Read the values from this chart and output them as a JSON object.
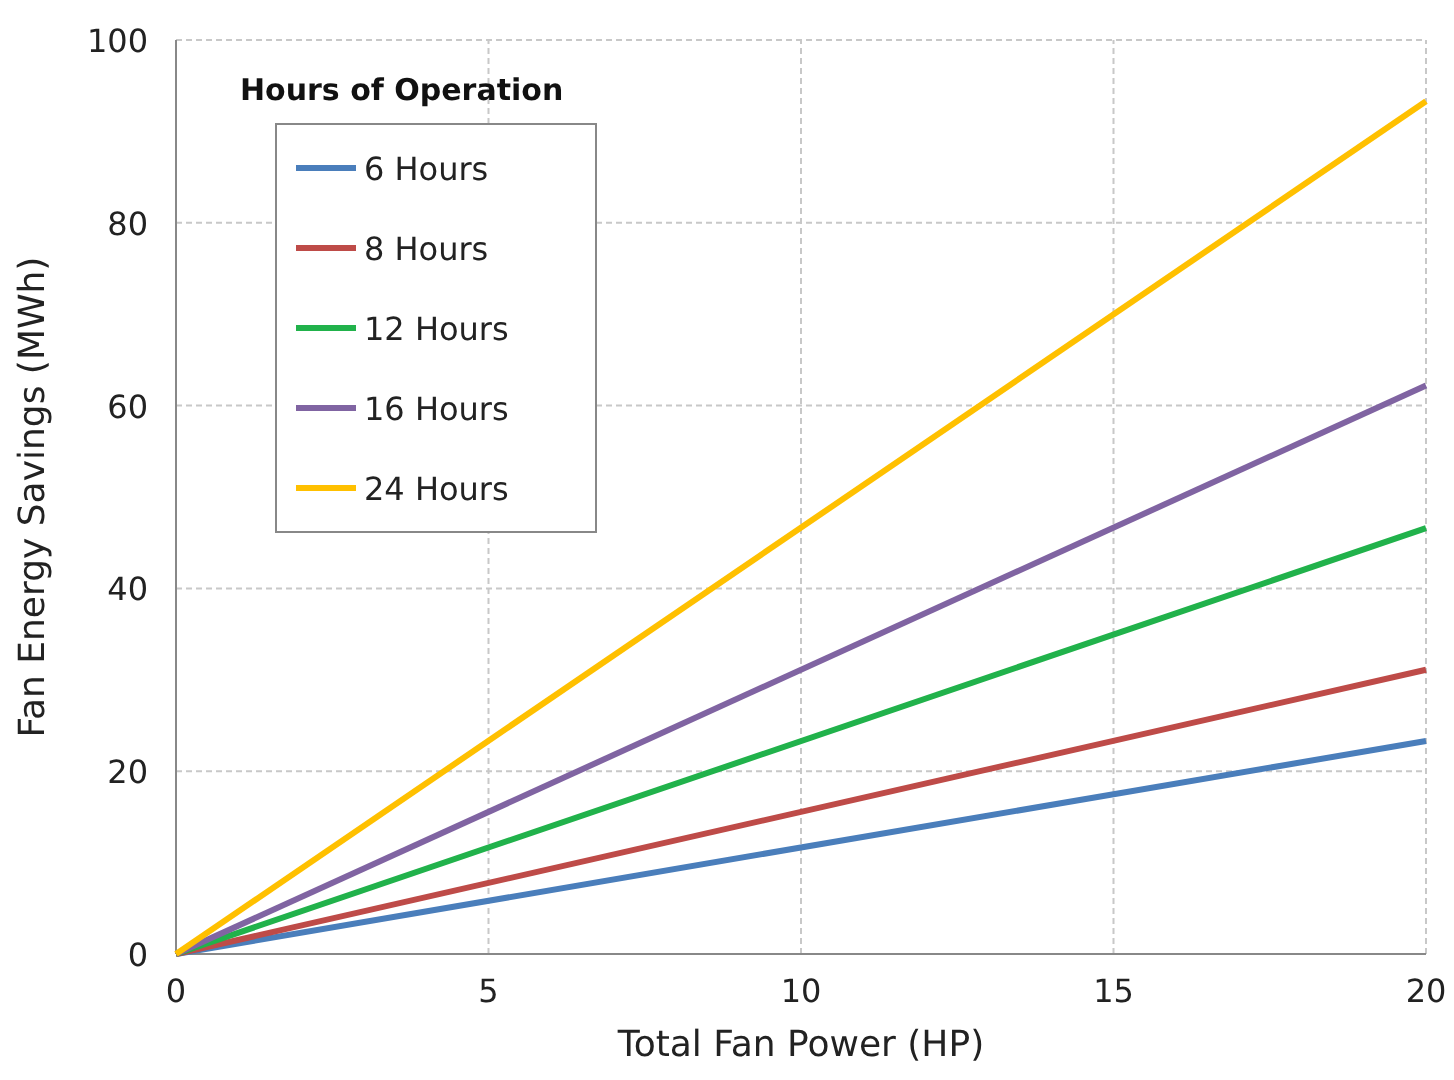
{
  "chart_data": {
    "type": "line",
    "xlabel": "Total Fan Power (HP)",
    "ylabel": "Fan Energy Savings (MWh)",
    "legend_title": "Hours of Operation",
    "x": [
      0,
      20
    ],
    "series": [
      {
        "name": "6 Hours",
        "color": "#4a7ebb",
        "values": [
          0,
          23.3
        ]
      },
      {
        "name": "8 Hours",
        "color": "#be4b48",
        "values": [
          0,
          31.1
        ]
      },
      {
        "name": "12 Hours",
        "color": "#21b24b",
        "values": [
          0,
          46.6
        ]
      },
      {
        "name": "16 Hours",
        "color": "#8064a2",
        "values": [
          0,
          62.2
        ]
      },
      {
        "name": "24 Hours",
        "color": "#ffc000",
        "values": [
          0,
          93.3
        ]
      }
    ],
    "xlim": [
      0,
      20
    ],
    "ylim": [
      0,
      100
    ],
    "xticks": [
      0,
      5,
      10,
      15,
      20
    ],
    "yticks": [
      0,
      20,
      40,
      60,
      80,
      100
    ],
    "grid": true,
    "legend": "top left",
    "marker": "none",
    "line_style": "solid"
  }
}
